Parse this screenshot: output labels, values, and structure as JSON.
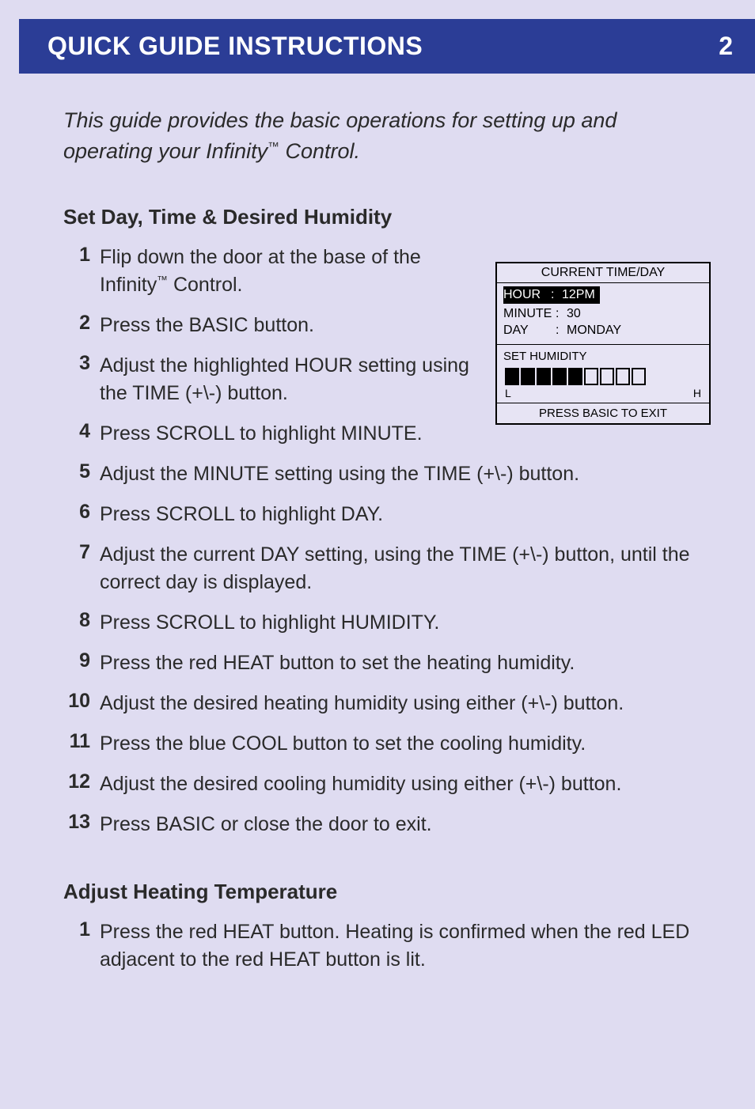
{
  "header": {
    "title": "QUICK GUIDE INSTRUCTIONS",
    "page": "2"
  },
  "intro": {
    "prefix": "This guide provides the basic operations for setting up and operating your Infinity",
    "tm": "™",
    "suffix": " Control."
  },
  "section1": {
    "title": "Set Day, Time & Desired Humidity",
    "steps": [
      {
        "n": "1",
        "pre": "Flip down the door at the base of the Infinity",
        "tm": "™",
        "post": " Control."
      },
      {
        "n": "2",
        "text": "Press the BASIC button."
      },
      {
        "n": "3",
        "text": "Adjust the highlighted HOUR setting using the TIME (+\\-) button."
      },
      {
        "n": "4",
        "text": "Press SCROLL to highlight MINUTE."
      },
      {
        "n": "5",
        "text": "Adjust the MINUTE setting using the TIME (+\\-) button."
      },
      {
        "n": "6",
        "text": "Press SCROLL to highlight DAY."
      },
      {
        "n": "7",
        "text": "Adjust the current DAY setting, using the TIME (+\\-) button, until the correct day is displayed."
      },
      {
        "n": "8",
        "text": "Press SCROLL to highlight HUMIDITY."
      },
      {
        "n": "9",
        "text": "Press the red HEAT button to set the heating humidity."
      },
      {
        "n": "10",
        "text": "Adjust the desired heating humidity using either (+\\-) button."
      },
      {
        "n": "11",
        "text": "Press the blue COOL button to set the cooling humidity."
      },
      {
        "n": "12",
        "text": "Adjust the desired cooling humidity using either (+\\-) button."
      },
      {
        "n": "13",
        "text": "Press BASIC or close the door to exit."
      }
    ]
  },
  "section2": {
    "title": "Adjust Heating Temperature",
    "steps": [
      {
        "n": "1",
        "text": "Press the red HEAT button. Heating is confirmed when the red LED adjacent to the red HEAT button is lit."
      }
    ]
  },
  "lcd": {
    "title": "CURRENT TIME/DAY",
    "rows": [
      {
        "label": "HOUR",
        "value": "12PM",
        "highlighted": true
      },
      {
        "label": "MINUTE",
        "value": "30",
        "highlighted": false
      },
      {
        "label": "DAY",
        "value": "MONDAY",
        "highlighted": false
      }
    ],
    "humidity": {
      "label": "SET HUMIDITY",
      "bars": [
        true,
        true,
        true,
        true,
        true,
        false,
        false,
        false,
        false
      ],
      "low": "L",
      "high": "H"
    },
    "footer": "PRESS BASIC TO EXIT",
    "colors": {
      "border": "#000000",
      "bg": "#e7e4f4",
      "highlight_bg": "#000000",
      "highlight_fg": "#ffffff"
    }
  },
  "colors": {
    "page_bg": "#dfdcf1",
    "header_bg": "#2b3d96",
    "header_fg": "#ffffff",
    "text": "#2a2a2a"
  }
}
